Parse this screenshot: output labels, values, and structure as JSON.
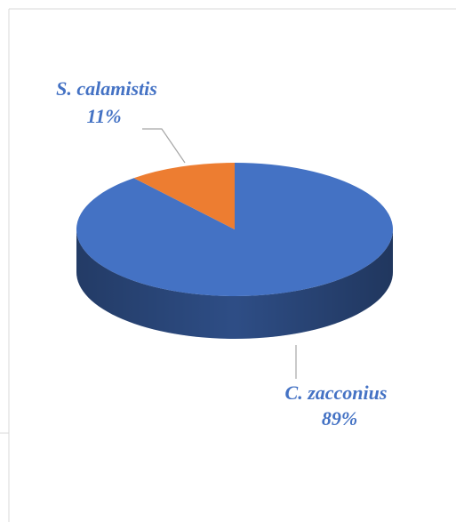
{
  "chart_data": {
    "type": "pie",
    "categories": [
      "C. zacconius",
      "S. calamistis"
    ],
    "values": [
      89,
      11
    ],
    "value_labels": [
      "89%",
      "11%"
    ],
    "colors": [
      "#4472c4",
      "#ed7d31"
    ]
  }
}
